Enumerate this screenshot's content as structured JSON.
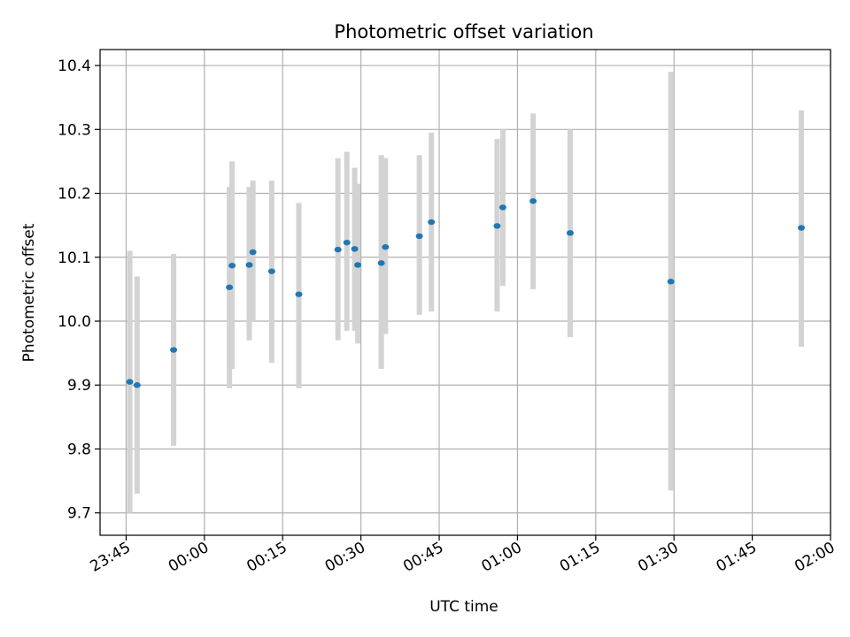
{
  "chart_data": {
    "type": "scatter",
    "title": "Photometric offset variation",
    "xlabel": "UTC time",
    "ylabel": "Photometric offset",
    "xlim": [
      "2000-01-01T23:40",
      "2000-01-02T02:00"
    ],
    "ylim": [
      9.665,
      10.425
    ],
    "grid": true,
    "x_ticks": [
      {
        "t": "2000-01-01T23:45",
        "label": "23:45"
      },
      {
        "t": "2000-01-02T00:00",
        "label": "00:00"
      },
      {
        "t": "2000-01-02T00:15",
        "label": "00:15"
      },
      {
        "t": "2000-01-02T00:30",
        "label": "00:30"
      },
      {
        "t": "2000-01-02T00:45",
        "label": "00:45"
      },
      {
        "t": "2000-01-02T01:00",
        "label": "01:00"
      },
      {
        "t": "2000-01-02T01:15",
        "label": "01:15"
      },
      {
        "t": "2000-01-02T01:30",
        "label": "01:30"
      },
      {
        "t": "2000-01-02T01:45",
        "label": "01:45"
      },
      {
        "t": "2000-01-02T02:00",
        "label": "02:00"
      }
    ],
    "y_ticks": [
      {
        "v": 9.7,
        "label": "9.7"
      },
      {
        "v": 9.8,
        "label": "9.8"
      },
      {
        "v": 9.9,
        "label": "9.9"
      },
      {
        "v": 10.0,
        "label": "10.0"
      },
      {
        "v": 10.1,
        "label": "10.1"
      },
      {
        "v": 10.2,
        "label": "10.2"
      },
      {
        "v": 10.3,
        "label": "10.3"
      },
      {
        "v": 10.4,
        "label": "10.4"
      }
    ],
    "marker_color": "#1f77b4",
    "errorbar_color": "#d3d3d3",
    "points": [
      {
        "t": "2000-01-01T23:45:42",
        "y": 9.905,
        "low": 9.7,
        "high": 10.11
      },
      {
        "t": "2000-01-01T23:47:06",
        "y": 9.9,
        "low": 9.73,
        "high": 10.07
      },
      {
        "t": "2000-01-01T23:54:06",
        "y": 9.955,
        "low": 9.805,
        "high": 10.105
      },
      {
        "t": "2000-01-02T00:04:48",
        "y": 10.053,
        "low": 9.895,
        "high": 10.21
      },
      {
        "t": "2000-01-02T00:05:18",
        "y": 10.087,
        "low": 9.925,
        "high": 10.25
      },
      {
        "t": "2000-01-02T00:08:36",
        "y": 10.088,
        "low": 9.97,
        "high": 10.21
      },
      {
        "t": "2000-01-02T00:09:18",
        "y": 10.108,
        "low": 10.0,
        "high": 10.22
      },
      {
        "t": "2000-01-02T00:12:54",
        "y": 10.078,
        "low": 9.935,
        "high": 10.22
      },
      {
        "t": "2000-01-02T00:18:06",
        "y": 10.042,
        "low": 9.895,
        "high": 10.185
      },
      {
        "t": "2000-01-02T00:25:36",
        "y": 10.112,
        "low": 9.97,
        "high": 10.255
      },
      {
        "t": "2000-01-02T00:27:18",
        "y": 10.123,
        "low": 9.985,
        "high": 10.265
      },
      {
        "t": "2000-01-02T00:28:48",
        "y": 10.113,
        "low": 9.985,
        "high": 10.24
      },
      {
        "t": "2000-01-02T00:29:24",
        "y": 10.088,
        "low": 9.965,
        "high": 10.215
      },
      {
        "t": "2000-01-02T00:33:54",
        "y": 10.091,
        "low": 9.925,
        "high": 10.26
      },
      {
        "t": "2000-01-02T00:34:42",
        "y": 10.116,
        "low": 9.98,
        "high": 10.255
      },
      {
        "t": "2000-01-02T00:41:12",
        "y": 10.133,
        "low": 10.01,
        "high": 10.26
      },
      {
        "t": "2000-01-02T00:43:30",
        "y": 10.155,
        "low": 10.015,
        "high": 10.295
      },
      {
        "t": "2000-01-02T00:56:06",
        "y": 10.149,
        "low": 10.015,
        "high": 10.285
      },
      {
        "t": "2000-01-02T00:57:12",
        "y": 10.178,
        "low": 10.055,
        "high": 10.3
      },
      {
        "t": "2000-01-02T01:03:00",
        "y": 10.188,
        "low": 10.05,
        "high": 10.325
      },
      {
        "t": "2000-01-02T01:10:06",
        "y": 10.138,
        "low": 9.975,
        "high": 10.3
      },
      {
        "t": "2000-01-02T01:29:24",
        "y": 10.062,
        "low": 9.735,
        "high": 10.39
      },
      {
        "t": "2000-01-02T01:54:24",
        "y": 10.146,
        "low": 9.96,
        "high": 10.33
      }
    ]
  }
}
